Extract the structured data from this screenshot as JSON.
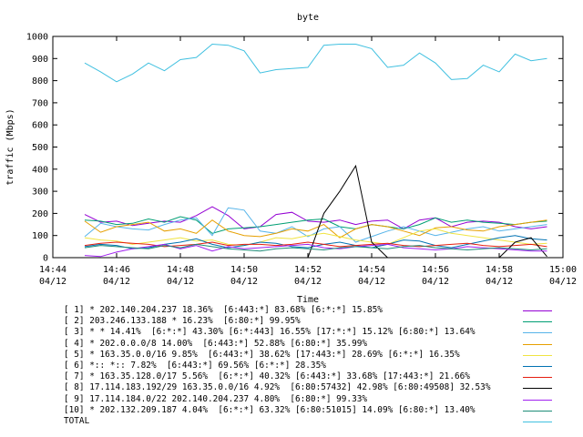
{
  "chart_data": {
    "type": "line",
    "title": "byte",
    "xlabel": "Time",
    "ylabel": "traffic (Mbps)",
    "ylim": [
      0,
      1000
    ],
    "xlim": [
      0,
      16
    ],
    "yticks": [
      0,
      100,
      200,
      300,
      400,
      500,
      600,
      700,
      800,
      900,
      1000
    ],
    "xticks": [
      {
        "at": 0,
        "time": "14:44",
        "date": "04/12"
      },
      {
        "at": 2,
        "time": "14:46",
        "date": "04/12"
      },
      {
        "at": 4,
        "time": "14:48",
        "date": "04/12"
      },
      {
        "at": 6,
        "time": "14:50",
        "date": "04/12"
      },
      {
        "at": 8,
        "time": "14:52",
        "date": "04/12"
      },
      {
        "at": 10,
        "time": "14:54",
        "date": "04/12"
      },
      {
        "at": 12,
        "time": "14:56",
        "date": "04/12"
      },
      {
        "at": 14,
        "time": "14:58",
        "date": "04/12"
      },
      {
        "at": 16,
        "time": "15:00",
        "date": "04/12"
      }
    ],
    "grid": false,
    "x": [
      1,
      1.5,
      2,
      2.5,
      3,
      3.5,
      4,
      4.5,
      5,
      5.5,
      6,
      6.5,
      7,
      7.5,
      8,
      8.5,
      9,
      9.5,
      10,
      10.5,
      11,
      11.5,
      12,
      12.5,
      13,
      13.5,
      14,
      14.5,
      15,
      15.5
    ],
    "series": [
      {
        "name": "[ 1]",
        "label": "[ 1] * 202.140.204.237 18.36%  [6:443:*] 83.68% [6:*:*] 15.85%",
        "color": "#9400d3",
        "values": [
          195,
          160,
          165,
          145,
          155,
          165,
          160,
          190,
          230,
          190,
          130,
          140,
          195,
          205,
          165,
          160,
          170,
          150,
          165,
          170,
          130,
          170,
          180,
          140,
          160,
          165,
          160,
          140,
          130,
          140
        ]
      },
      {
        "name": "[ 2]",
        "label": "[ 2] 203.246.133.188 * 16.23%  [6:80:*] 99.95%",
        "color": "#009e73",
        "values": [
          170,
          165,
          150,
          155,
          175,
          160,
          185,
          170,
          110,
          130,
          135,
          140,
          150,
          160,
          170,
          175,
          140,
          130,
          150,
          140,
          130,
          150,
          180,
          160,
          170,
          160,
          155,
          150,
          160,
          165
        ]
      },
      {
        "name": "[ 3]",
        "label": "[ 3] * * 14.41%  [6:*:*] 43.30% [6:*:443] 16.55% [17:*:*] 15.12% [6:80:*] 13.64%",
        "color": "#56b4e9",
        "values": [
          95,
          155,
          140,
          130,
          125,
          150,
          170,
          180,
          100,
          225,
          215,
          120,
          110,
          140,
          95,
          130,
          140,
          70,
          95,
          120,
          140,
          120,
          100,
          115,
          130,
          140,
          120,
          130,
          140,
          150
        ]
      },
      {
        "name": "[ 4]",
        "label": "[ 4] * 202.0.0.0/8 14.00%  [6:443:*] 52.88% [6:80:*] 35.99%",
        "color": "#e69f00",
        "values": [
          165,
          115,
          140,
          150,
          160,
          120,
          130,
          110,
          170,
          120,
          100,
          95,
          110,
          130,
          120,
          150,
          90,
          130,
          150,
          140,
          120,
          100,
          135,
          140,
          125,
          120,
          140,
          150,
          160,
          170
        ]
      },
      {
        "name": "[ 5]",
        "label": "[ 5] * 163.35.0.0/16 9.85%  [6:443:*] 38.62% [17:443:*] 28.69% [6:*:*] 16.35%",
        "color": "#f0e442",
        "values": [
          90,
          80,
          75,
          60,
          70,
          80,
          90,
          75,
          80,
          60,
          55,
          70,
          90,
          85,
          100,
          110,
          95,
          80,
          70,
          60,
          90,
          120,
          130,
          110,
          100,
          90,
          80,
          70,
          60,
          65
        ]
      },
      {
        "name": "[ 6]",
        "label": "[ 6] *:: *:: 7.82%  [6:443:*] 69.56% [6:*:*] 28.35%",
        "color": "#0072b2",
        "values": [
          50,
          60,
          55,
          40,
          45,
          60,
          70,
          85,
          60,
          45,
          55,
          70,
          65,
          50,
          45,
          60,
          70,
          55,
          45,
          60,
          80,
          75,
          55,
          45,
          60,
          75,
          90,
          100,
          85,
          80
        ]
      },
      {
        "name": "[ 7]",
        "label": "[ 7] * 163.35.128.0/17 5.56%  [6:*:*] 40.32% [6:443:*] 33.68% [17:443:*] 21.66%",
        "color": "#e51e10",
        "values": [
          55,
          65,
          70,
          65,
          60,
          50,
          55,
          60,
          70,
          55,
          60,
          60,
          55,
          60,
          70,
          60,
          50,
          55,
          60,
          65,
          55,
          50,
          55,
          60,
          65,
          55,
          50,
          55,
          60,
          50
        ]
      },
      {
        "name": "[ 8]",
        "label": "[ 8] 17.114.183.192/29 163.35.0.0/16 4.92%  [6:80:57432] 42.98% [6:80:49508] 32.53%",
        "color": "#000000",
        "values": [
          0,
          0,
          0,
          0,
          0,
          0,
          0,
          0,
          0,
          0,
          0,
          0,
          0,
          0,
          0,
          200,
          300,
          415,
          70,
          0,
          0,
          0,
          0,
          0,
          0,
          0,
          0,
          70,
          90,
          5
        ]
      },
      {
        "name": "[ 9]",
        "label": "[ 9] 17.114.184.0/22 202.140.204.237 4.80%  [6:80:*] 99.33%",
        "color": "#a020f0",
        "values": [
          10,
          5,
          25,
          40,
          50,
          60,
          40,
          55,
          30,
          50,
          40,
          45,
          50,
          55,
          60,
          45,
          40,
          50,
          55,
          60,
          45,
          40,
          35,
          40,
          50,
          45,
          40,
          35,
          30,
          30
        ]
      },
      {
        "name": "[10]",
        "label": "[10] * 202.132.209.187 4.04%  [6:*:*] 63.32% [6:80:51015] 14.09% [6:80:*] 13.40%",
        "color": "#1e8c78",
        "values": [
          45,
          55,
          50,
          45,
          40,
          55,
          45,
          60,
          50,
          40,
          35,
          30,
          40,
          45,
          40,
          35,
          45,
          50,
          45,
          40,
          50,
          55,
          45,
          40,
          35,
          40,
          45,
          40,
          35,
          40
        ]
      },
      {
        "name": "TOTAL",
        "label": "TOTAL",
        "color": "#40c0e0",
        "values": [
          880,
          840,
          795,
          830,
          880,
          845,
          895,
          905,
          965,
          960,
          935,
          835,
          850,
          855,
          860,
          960,
          965,
          965,
          945,
          860,
          870,
          925,
          880,
          805,
          810,
          870,
          840,
          920,
          890,
          900
        ]
      }
    ]
  }
}
